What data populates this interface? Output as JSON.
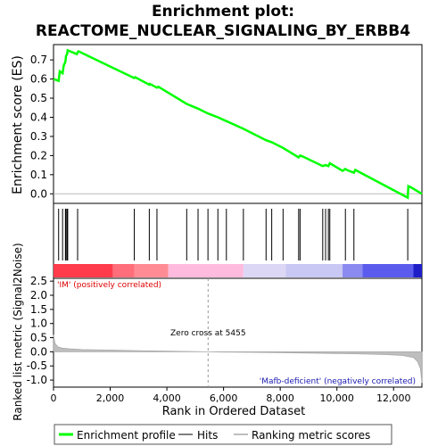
{
  "chart_data": {
    "type": "line",
    "title_line1": "Enrichment plot:",
    "title_line2": "REACTOME_NUCLEAR_SIGNALING_BY_ERBB4",
    "es_panel": {
      "ylabel": "Enrichment score (ES)",
      "ylim": [
        -0.05,
        0.78
      ],
      "yticks": [
        0.0,
        0.1,
        0.2,
        0.3,
        0.4,
        0.5,
        0.6,
        0.7
      ],
      "ytick_labels": [
        "0.0",
        "0.1",
        "0.2",
        "0.3",
        "0.4",
        "0.5",
        "0.6",
        "0.7"
      ],
      "line_color": "#00ff00",
      "x": [
        0,
        180,
        220,
        320,
        360,
        420,
        440,
        480,
        500,
        820,
        850,
        880,
        2850,
        2880,
        3380,
        3400,
        3650,
        3700,
        4700,
        5100,
        5450,
        5800,
        6100,
        6700,
        7500,
        7700,
        8100,
        8650,
        8700,
        8800,
        9500,
        9600,
        9700,
        9750,
        9800,
        10200,
        10300,
        10350,
        10600,
        10650,
        12500,
        12520,
        12600,
        13000
      ],
      "y": [
        0.6,
        0.59,
        0.64,
        0.63,
        0.67,
        0.69,
        0.72,
        0.73,
        0.75,
        0.73,
        0.74,
        0.745,
        0.605,
        0.61,
        0.57,
        0.575,
        0.555,
        0.56,
        0.47,
        0.445,
        0.42,
        0.4,
        0.38,
        0.34,
        0.28,
        0.27,
        0.24,
        0.19,
        0.2,
        0.195,
        0.145,
        0.15,
        0.145,
        0.16,
        0.155,
        0.12,
        0.13,
        0.125,
        0.11,
        0.125,
        -0.02,
        0.04,
        0.035,
        0.0
      ]
    },
    "hits": [
      180,
      320,
      420,
      440,
      480,
      500,
      850,
      2850,
      3380,
      3650,
      4700,
      5100,
      5450,
      5800,
      6100,
      6700,
      7500,
      7700,
      8100,
      8650,
      8700,
      9500,
      9600,
      9700,
      9750,
      10300,
      10600,
      12500
    ],
    "color_bar": {
      "segments": [
        {
          "from": 0,
          "to": 2100,
          "color": "#ff3b4c"
        },
        {
          "from": 2100,
          "to": 2850,
          "color": "#ff6e7a"
        },
        {
          "from": 2850,
          "to": 4050,
          "color": "#ff8c94"
        },
        {
          "from": 4050,
          "to": 6700,
          "color": "#ffbbdd"
        },
        {
          "from": 6700,
          "to": 8200,
          "color": "#dcd7f5"
        },
        {
          "from": 8200,
          "to": 10200,
          "color": "#c9c7f3"
        },
        {
          "from": 10200,
          "to": 10900,
          "color": "#8a8af0"
        },
        {
          "from": 10900,
          "to": 12700,
          "color": "#5b5bed"
        },
        {
          "from": 12700,
          "to": 13000,
          "color": "#1e1ec8"
        }
      ]
    },
    "metric_panel": {
      "ylabel": "Ranked list metric (Signal2Noise)",
      "xlabel": "Rank in Ordered Dataset",
      "ylim": [
        -1.25,
        2.6
      ],
      "yticks": [
        -1.0,
        -0.5,
        0.0,
        0.5,
        1.0,
        1.5,
        2.0,
        2.5
      ],
      "ytick_labels": [
        "-1.0",
        "-0.5",
        "0.0",
        "0.5",
        "1.0",
        "1.5",
        "2.0",
        "2.5"
      ],
      "xlim": [
        0,
        13000
      ],
      "xticks": [
        0,
        2000,
        4000,
        6000,
        8000,
        10000,
        12000
      ],
      "xtick_labels": [
        "0",
        "2,000",
        "4,000",
        "6,000",
        "8,000",
        "10,000",
        "12,000"
      ],
      "curve_x": [
        0,
        50,
        150,
        300,
        600,
        1000,
        2000,
        3000,
        4000,
        5000,
        5455,
        6000,
        7000,
        8000,
        9000,
        10000,
        11000,
        11800,
        12300,
        12700,
        12850,
        12950,
        13000
      ],
      "curve_y": [
        0.6,
        0.3,
        0.18,
        0.13,
        0.1,
        0.08,
        0.06,
        0.04,
        0.025,
        0.01,
        0.0,
        -0.01,
        -0.02,
        -0.03,
        -0.045,
        -0.06,
        -0.08,
        -0.1,
        -0.13,
        -0.2,
        -0.35,
        -0.6,
        -1.1
      ],
      "positive_label": "'IM' (positively correlated)",
      "negative_label": "'Mafb-deficient' (negatively correlated)",
      "zero_cross_label": "Zero cross at 5455",
      "zero_cross": 5455
    },
    "legend": {
      "items": [
        {
          "label": "Enrichment profile",
          "color": "#00ff00"
        },
        {
          "label": "Hits",
          "color": "#000000"
        },
        {
          "label": "Ranking metric scores",
          "color": "#bebebe"
        }
      ]
    }
  }
}
